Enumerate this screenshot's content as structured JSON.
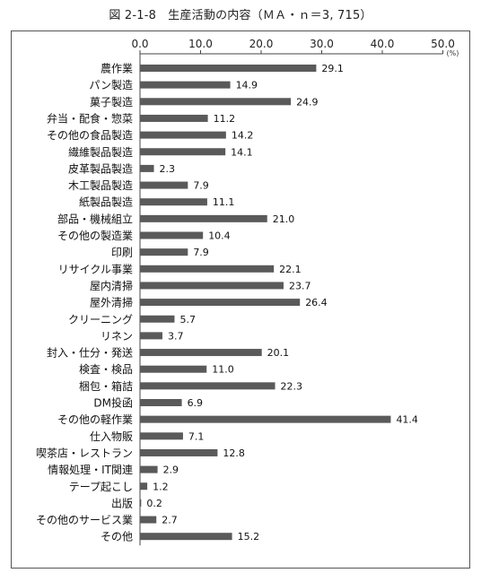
{
  "figure_title": "図 2-1-8　生産活動の内容（ＭＡ・ｎ＝3, 715）",
  "chart_data": {
    "type": "bar",
    "orientation": "horizontal",
    "title": "図 2-1-8　生産活動の内容（ＭＡ・ｎ＝3, 715）",
    "xlabel": "",
    "ylabel": "",
    "unit": "(%)",
    "xlim": [
      0,
      50
    ],
    "xticks": [
      "0.0",
      "10.0",
      "20.0",
      "30.0",
      "40.0",
      "50.0"
    ],
    "grid": false,
    "bar_color": "#5a5a5a",
    "categories": [
      "農作業",
      "パン製造",
      "菓子製造",
      "弁当・配食・惣菜",
      "その他の食品製造",
      "繊維製品製造",
      "皮革製品製造",
      "木工製品製造",
      "紙製品製造",
      "部品・機械組立",
      "その他の製造業",
      "印刷",
      "リサイクル事業",
      "屋内清掃",
      "屋外清掃",
      "クリーニング",
      "リネン",
      "封入・仕分・発送",
      "検査・検品",
      "梱包・箱詰",
      "DM投函",
      "その他の軽作業",
      "仕入物販",
      "喫茶店・レストラン",
      "情報処理・IT関連",
      "テープ起こし",
      "出版",
      "その他のサービス業",
      "その他"
    ],
    "values": [
      29.1,
      14.9,
      24.9,
      11.2,
      14.2,
      14.1,
      2.3,
      7.9,
      11.1,
      21.0,
      10.4,
      7.9,
      22.1,
      23.7,
      26.4,
      5.7,
      3.7,
      20.1,
      11.0,
      22.3,
      6.9,
      41.4,
      7.1,
      12.8,
      2.9,
      1.2,
      0.2,
      2.7,
      15.2
    ],
    "value_labels": [
      "29.1",
      "14.9",
      "24.9",
      "11.2",
      "14.2",
      "14.1",
      "2.3",
      "7.9",
      "11.1",
      "21.0",
      "10.4",
      "7.9",
      "22.1",
      "23.7",
      "26.4",
      "5.7",
      "3.7",
      "20.1",
      "11.0",
      "22.3",
      "6.9",
      "41.4",
      "7.1",
      "12.8",
      "2.9",
      "1.2",
      "0.2",
      "2.7",
      "15.2"
    ]
  }
}
